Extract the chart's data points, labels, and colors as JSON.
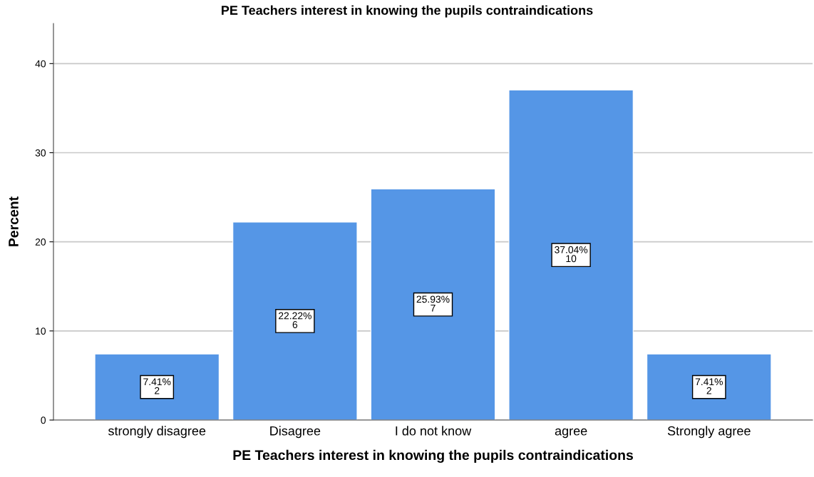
{
  "chart_data": {
    "type": "bar",
    "title": "PE Teachers interest in knowing the pupils contraindications",
    "xlabel": "PE Teachers interest in knowing the pupils contraindications",
    "ylabel": "Percent",
    "categories": [
      "strongly disagree",
      "Disagree",
      "I do not know",
      "agree",
      "Strongly agree"
    ],
    "values": [
      7.41,
      22.22,
      25.93,
      37.04,
      7.41
    ],
    "value_labels": [
      "7.41%\n2",
      "22.22%\n6",
      "25.93%\n7",
      "37.04%\n10",
      "7.41%\n2"
    ],
    "color": "#5596e6",
    "ylim": [
      0,
      44.5
    ],
    "yticks": [
      0,
      10,
      20,
      30,
      40
    ],
    "grid": "y"
  }
}
